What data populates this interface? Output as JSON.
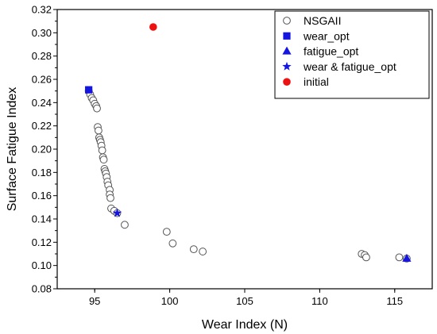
{
  "chart_data": {
    "type": "scatter",
    "title": "",
    "xlabel": "Wear Index (N)",
    "ylabel": "Surface Fatigue Index",
    "xlim": [
      92.5,
      117.5
    ],
    "ylim": [
      0.08,
      0.32
    ],
    "x_ticks": [
      95,
      100,
      105,
      110,
      115
    ],
    "x_tick_labels": [
      "95",
      "100",
      "105",
      "110",
      "115"
    ],
    "y_ticks": [
      0.08,
      0.1,
      0.12,
      0.14,
      0.16,
      0.18,
      0.2,
      0.22,
      0.24,
      0.26,
      0.28,
      0.3,
      0.32
    ],
    "y_tick_labels": [
      "0.08",
      "0.10",
      "0.12",
      "0.14",
      "0.16",
      "0.18",
      "0.20",
      "0.22",
      "0.24",
      "0.26",
      "0.28",
      "0.30",
      "0.32"
    ],
    "grid": false,
    "legend_position": "top-right",
    "series": [
      {
        "name": "NSGAII",
        "marker": "open-circle",
        "color": "#555555",
        "points": [
          [
            94.6,
            0.25
          ],
          [
            94.7,
            0.247
          ],
          [
            94.8,
            0.244
          ],
          [
            94.9,
            0.242
          ],
          [
            95.0,
            0.239
          ],
          [
            95.1,
            0.237
          ],
          [
            95.15,
            0.235
          ],
          [
            95.2,
            0.219
          ],
          [
            95.25,
            0.216
          ],
          [
            95.3,
            0.21
          ],
          [
            95.35,
            0.208
          ],
          [
            95.4,
            0.206
          ],
          [
            95.45,
            0.203
          ],
          [
            95.5,
            0.199
          ],
          [
            95.55,
            0.193
          ],
          [
            95.6,
            0.191
          ],
          [
            95.65,
            0.183
          ],
          [
            95.7,
            0.181
          ],
          [
            95.75,
            0.179
          ],
          [
            95.8,
            0.176
          ],
          [
            95.85,
            0.172
          ],
          [
            95.9,
            0.169
          ],
          [
            96.0,
            0.165
          ],
          [
            96.0,
            0.161
          ],
          [
            96.05,
            0.158
          ],
          [
            96.1,
            0.149
          ],
          [
            96.3,
            0.147
          ],
          [
            96.5,
            0.145
          ],
          [
            97.0,
            0.135
          ],
          [
            99.8,
            0.129
          ],
          [
            100.2,
            0.119
          ],
          [
            101.6,
            0.114
          ],
          [
            102.2,
            0.112
          ],
          [
            112.8,
            0.11
          ],
          [
            113.0,
            0.109
          ],
          [
            113.1,
            0.107
          ],
          [
            115.3,
            0.107
          ],
          [
            115.8,
            0.106
          ]
        ]
      },
      {
        "name": "wear_opt",
        "marker": "filled-square",
        "color": "#1515e0",
        "points": [
          [
            94.6,
            0.251
          ]
        ]
      },
      {
        "name": "fatigue_opt",
        "marker": "filled-triangle",
        "color": "#1515e0",
        "points": [
          [
            115.8,
            0.106
          ]
        ]
      },
      {
        "name": "wear & fatigue_opt",
        "marker": "filled-star",
        "color": "#1515e0",
        "points": [
          [
            96.5,
            0.145
          ]
        ]
      },
      {
        "name": "initial",
        "marker": "filled-circle",
        "color": "#ee1111",
        "points": [
          [
            98.9,
            0.305
          ]
        ]
      }
    ]
  }
}
